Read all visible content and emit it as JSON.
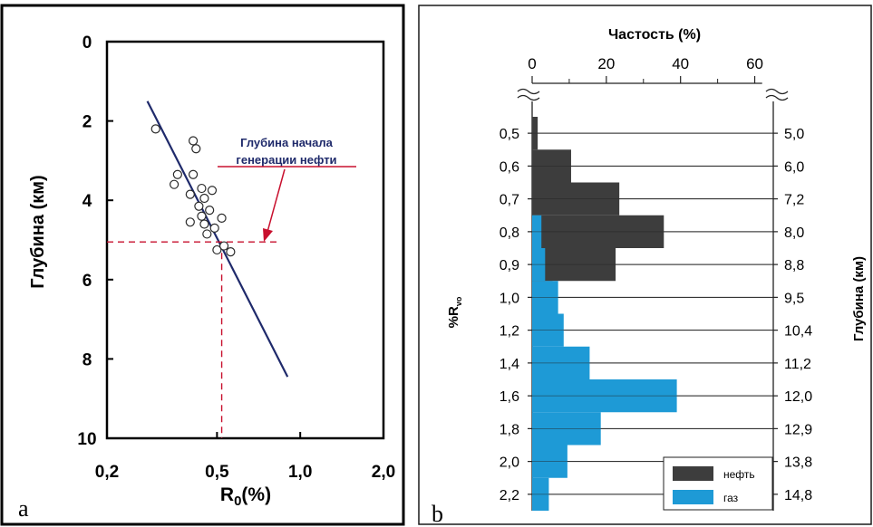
{
  "chart_data": [
    {
      "type": "scatter",
      "panel_label": "a",
      "ylabel": "Глубина (км)",
      "xlabel_main": "R",
      "xlabel_sub": "0",
      "xlabel_unit": "(%)",
      "xscale": "log",
      "xlim": [
        0.2,
        2.0
      ],
      "ylim": [
        0,
        10
      ],
      "yaxis_inverted": true,
      "x_ticks": [
        "0,2",
        "0,5",
        "1,0",
        "2,0"
      ],
      "x_tick_values": [
        0.2,
        0.5,
        1.0,
        2.0
      ],
      "y_ticks": [
        "0",
        "2",
        "4",
        "6",
        "8",
        "10"
      ],
      "y_tick_values": [
        0,
        2,
        4,
        6,
        8,
        10
      ],
      "points": [
        {
          "x": 0.3,
          "y": 2.2
        },
        {
          "x": 0.41,
          "y": 2.5
        },
        {
          "x": 0.42,
          "y": 2.7
        },
        {
          "x": 0.36,
          "y": 3.35
        },
        {
          "x": 0.41,
          "y": 3.35
        },
        {
          "x": 0.35,
          "y": 3.6
        },
        {
          "x": 0.44,
          "y": 3.7
        },
        {
          "x": 0.48,
          "y": 3.75
        },
        {
          "x": 0.4,
          "y": 3.85
        },
        {
          "x": 0.45,
          "y": 3.95
        },
        {
          "x": 0.43,
          "y": 4.15
        },
        {
          "x": 0.47,
          "y": 4.25
        },
        {
          "x": 0.44,
          "y": 4.4
        },
        {
          "x": 0.52,
          "y": 4.45
        },
        {
          "x": 0.4,
          "y": 4.55
        },
        {
          "x": 0.45,
          "y": 4.6
        },
        {
          "x": 0.49,
          "y": 4.7
        },
        {
          "x": 0.46,
          "y": 4.85
        },
        {
          "x": 0.5,
          "y": 5.25
        },
        {
          "x": 0.53,
          "y": 5.15
        },
        {
          "x": 0.56,
          "y": 5.3
        }
      ],
      "trend_line": {
        "x": [
          0.28,
          0.9
        ],
        "y": [
          1.5,
          8.45
        ],
        "color": "#1f2a6b"
      },
      "marker": {
        "x": 0.52,
        "y": 5.05,
        "color": "#c8102e"
      },
      "annotation": {
        "lines": [
          "Глубина начала",
          "генерации нефти"
        ],
        "color": "#1f2a6b",
        "underline_color": "#c8102e"
      }
    },
    {
      "type": "bar",
      "orientation": "horizontal",
      "panel_label": "b",
      "title": "Частость (%)",
      "xlim": [
        0,
        65
      ],
      "x_ticks": [
        "0",
        "20",
        "40",
        "60"
      ],
      "x_tick_values": [
        0,
        20,
        40,
        60
      ],
      "left_axis_label": "%R",
      "left_axis_subscript": "vo",
      "right_axis_label": "Глубина (км)",
      "categories": [
        "0,5",
        "0,6",
        "0,7",
        "0,8",
        "0,9",
        "1,0",
        "1,2",
        "1,4",
        "1,6",
        "1,8",
        "2,0",
        "2,2"
      ],
      "depths": [
        "5,0",
        "6,0",
        "7,2",
        "8,0",
        "8,8",
        "9,5",
        "10,4",
        "11,2",
        "12,0",
        "12,9",
        "13,8",
        "14,8"
      ],
      "series": [
        {
          "name": "нефть",
          "color": "#3d3d3d",
          "values": [
            1.5,
            10.5,
            23.5,
            35.5,
            22.5,
            5.5,
            0,
            0,
            0,
            0,
            0,
            0
          ]
        },
        {
          "name": "газ",
          "color": "#1e9ad6",
          "values": [
            0,
            0,
            0,
            2.5,
            3.5,
            7.0,
            8.5,
            15.5,
            39.0,
            18.5,
            9.5,
            4.5
          ]
        }
      ],
      "grid": true,
      "legend_position": "bottom-right"
    }
  ]
}
